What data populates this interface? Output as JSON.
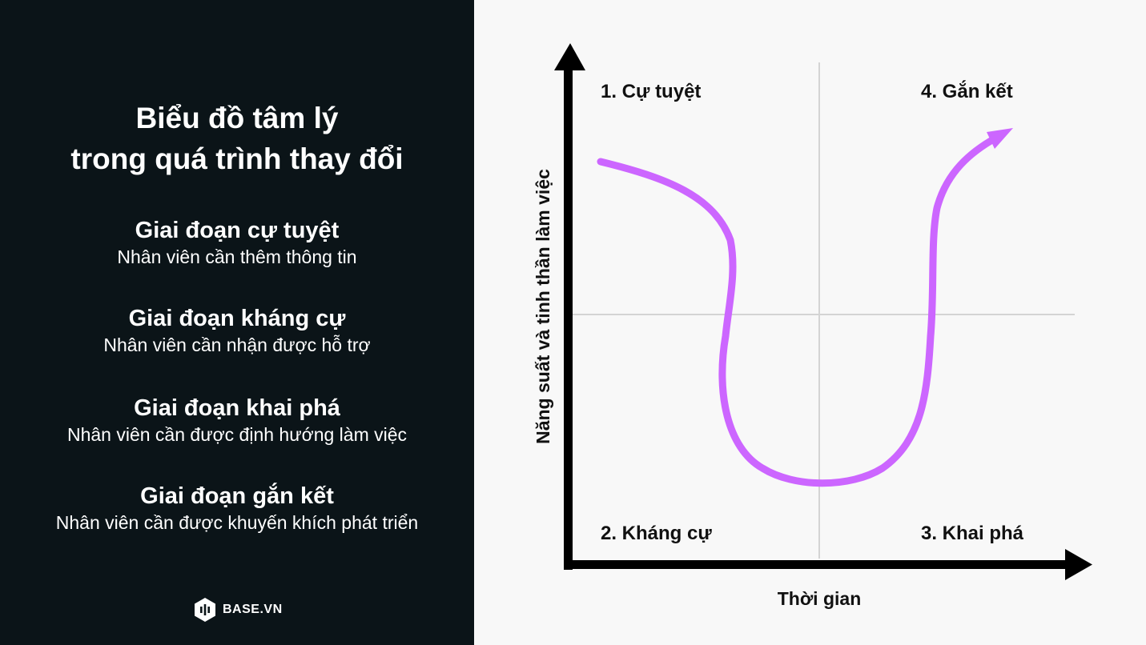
{
  "left": {
    "title_line1": "Biểu đồ tâm lý",
    "title_line2": "trong quá trình thay đổi",
    "stages": [
      {
        "name": "Giai đoạn cự tuyệt",
        "desc": "Nhân viên cần thêm thông tin"
      },
      {
        "name": "Giai đoạn kháng cự",
        "desc": "Nhân viên cần nhận được hỗ trợ"
      },
      {
        "name": "Giai đoạn khai phá",
        "desc": "Nhân viên cần được định hướng làm việc"
      },
      {
        "name": "Giai đoạn gắn kết",
        "desc": "Nhân viên cần được khuyến khích phát triển"
      }
    ],
    "brand": "BASE.VN"
  },
  "diagram": {
    "quadrants": {
      "top_left": "1. Cự tuyệt",
      "bottom_left": "2. Kháng cự",
      "bottom_right": "3. Khai phá",
      "top_right": "4. Gắn kết"
    },
    "x_axis_label": "Thời gian",
    "y_axis_label": "Năng suất và tinh thần làm việc",
    "curve_color": "#cc66ff",
    "axis_color": "#000000",
    "grid_color": "#d4d4d4"
  }
}
